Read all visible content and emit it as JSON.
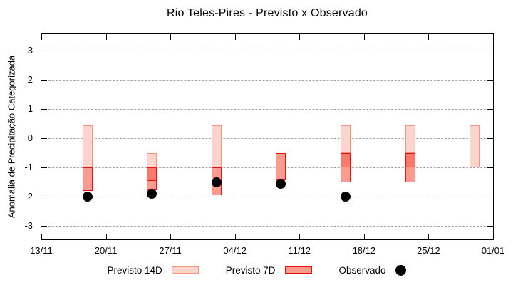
{
  "chart_data": {
    "type": "bar",
    "title": "Rio Teles-Pires - Previsto x Observado",
    "ylabel": "Anomalia de Precipitação Categorizada",
    "xlabel": "",
    "grid": "horizontal-dashed",
    "ylim": [
      -3.45,
      3.55
    ],
    "xlim_days": [
      0,
      49
    ],
    "y_ticks": [
      3,
      2,
      1,
      0,
      -1,
      -2,
      -3
    ],
    "x_ticks": [
      {
        "label": "13/11",
        "day": 0
      },
      {
        "label": "20/11",
        "day": 7
      },
      {
        "label": "27/11",
        "day": 14
      },
      {
        "label": "04/12",
        "day": 21
      },
      {
        "label": "11/12",
        "day": 28
      },
      {
        "label": "18/12",
        "day": 35
      },
      {
        "label": "25/12",
        "day": 42
      },
      {
        "label": "01/01",
        "day": 49
      }
    ],
    "series_names": [
      "Previsto 14D",
      "Previsto 7D",
      "Observado"
    ],
    "bars": [
      {
        "date": "18/11",
        "day": 5,
        "previsto14": [
          0.45,
          -1.0
        ],
        "previsto7": [
          -1.0,
          -1.8
        ],
        "previsto7_dark": null,
        "observado": -2.0
      },
      {
        "date": "25/11",
        "day": 12,
        "previsto14": [
          -0.5,
          -1.0
        ],
        "previsto7": [
          -1.0,
          -1.75
        ],
        "previsto7_dark": [
          -1.0,
          -1.45
        ],
        "observado": -1.9
      },
      {
        "date": "02/12",
        "day": 19,
        "previsto14": [
          0.45,
          -1.0
        ],
        "previsto7": [
          -1.0,
          -1.95
        ],
        "previsto7_dark": null,
        "observado": -1.5
      },
      {
        "date": "09/12",
        "day": 26,
        "previsto14": null,
        "previsto7": [
          -0.5,
          -1.4
        ],
        "previsto7_dark": null,
        "observado": -1.55
      },
      {
        "date": "16/12",
        "day": 33,
        "previsto14": [
          0.45,
          -0.5
        ],
        "previsto7": [
          -0.5,
          -1.5
        ],
        "previsto7_dark": [
          -0.5,
          -1.0
        ],
        "observado": -2.0
      },
      {
        "date": "23/12",
        "day": 40,
        "previsto14": [
          0.45,
          -0.5
        ],
        "previsto7": [
          -0.5,
          -1.5
        ],
        "previsto7_dark": [
          -0.5,
          -1.0
        ],
        "observado": null
      },
      {
        "date": "30/12",
        "day": 47,
        "previsto14": [
          0.45,
          -1.0
        ],
        "previsto7": null,
        "previsto7_dark": null,
        "observado": null
      }
    ],
    "colors": {
      "previsto14_fill": "#fbd4cb",
      "previsto14_border": "#f29384",
      "previsto7_fill": "#fd9b91",
      "previsto7_fill_dark": "#fa786c",
      "previsto7_border": "#e8120c",
      "observado": "#000000",
      "grid": "#a3a3a3",
      "axis": "#000000"
    },
    "legend": {
      "position": "bottom-center",
      "items": [
        {
          "label": "Previsto 14D",
          "swatch": "box14"
        },
        {
          "label": "Previsto 7D",
          "swatch": "box7"
        },
        {
          "label": "Observado",
          "swatch": "dot"
        }
      ]
    }
  }
}
